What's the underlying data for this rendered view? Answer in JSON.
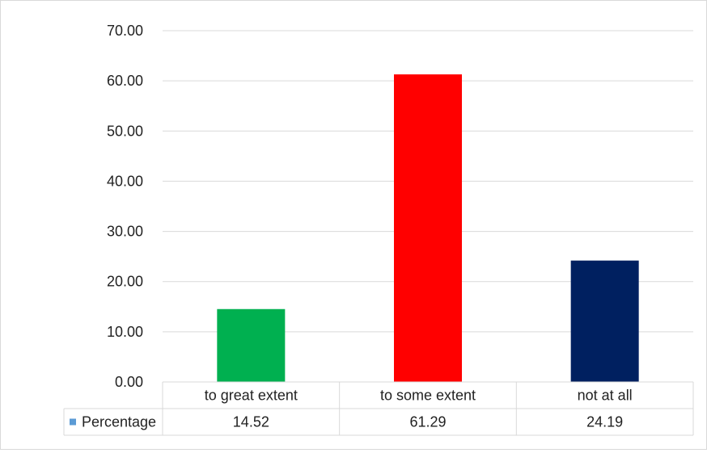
{
  "chart_data": {
    "type": "bar",
    "categories": [
      "to great extent",
      "to some extent",
      "not at all"
    ],
    "series": [
      {
        "name": "Percentage",
        "values": [
          14.52,
          61.29,
          24.19
        ],
        "value_labels": [
          "14.52",
          "61.29",
          "24.19"
        ],
        "color": "#5B9BD5"
      }
    ],
    "bar_colors": [
      "#00B050",
      "#FF0000",
      "#002060"
    ],
    "ylim": [
      0,
      70
    ],
    "yticks": [
      0,
      10,
      20,
      30,
      40,
      50,
      60,
      70
    ],
    "ytick_labels": [
      "0.00",
      "10.00",
      "20.00",
      "30.00",
      "40.00",
      "50.00",
      "60.00",
      "70.00"
    ],
    "grid": true,
    "legend": "data-table",
    "title": "",
    "xlabel": "",
    "ylabel": ""
  },
  "colors": {
    "grid": "#d9d9d9",
    "axis_text": "#222222"
  }
}
